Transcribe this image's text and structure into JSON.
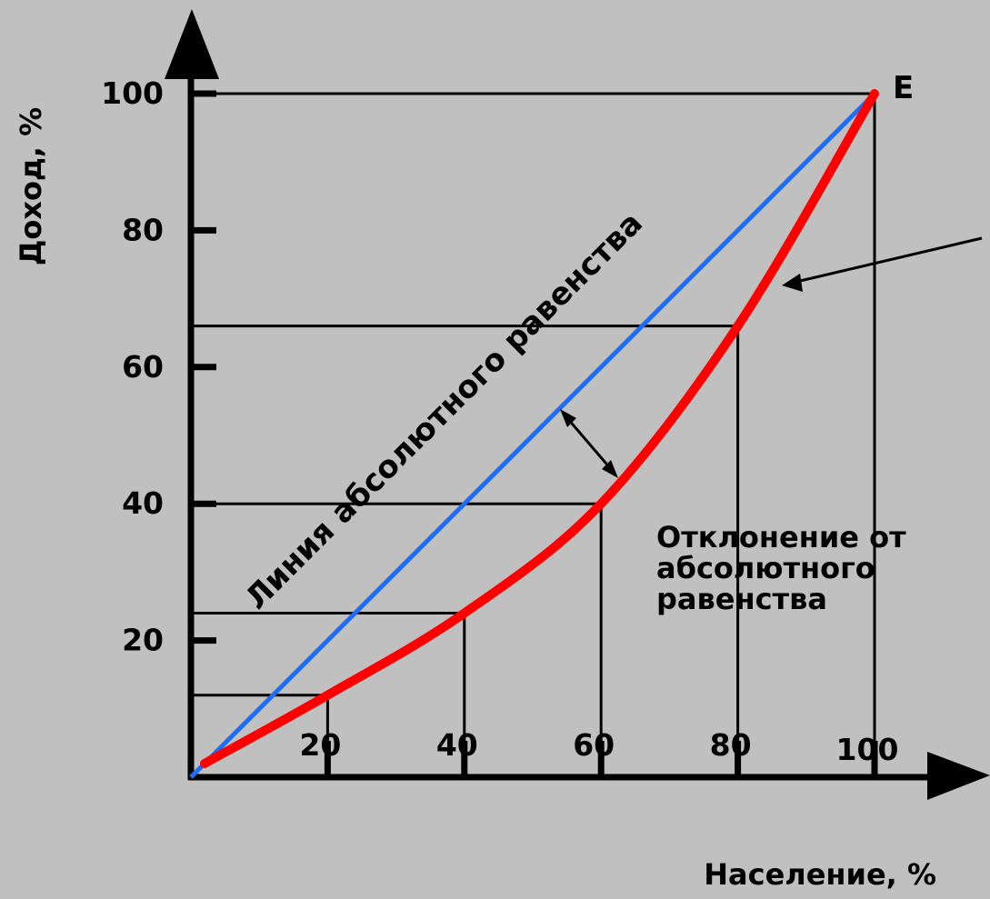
{
  "chart_data": {
    "type": "line",
    "xlabel": "Население, %",
    "ylabel": "Доход, %",
    "xlim": [
      0,
      100
    ],
    "ylim": [
      0,
      100
    ],
    "x_ticks": [
      "20",
      "40",
      "60",
      "80",
      "100"
    ],
    "y_ticks": [
      "20",
      "40",
      "60",
      "80",
      "100"
    ],
    "series": [
      {
        "name": "Линия абсолютного равенства",
        "color": "#1a6dff",
        "x": [
          0,
          100
        ],
        "y": [
          0,
          100
        ]
      },
      {
        "color": "#ff0000",
        "x": [
          2,
          20,
          40,
          60,
          80,
          100
        ],
        "y": [
          2,
          12,
          24,
          40,
          66,
          100
        ]
      }
    ],
    "reference_points": [
      {
        "x": 20,
        "y": 12
      },
      {
        "x": 40,
        "y": 24
      },
      {
        "x": 60,
        "y": 40
      },
      {
        "x": 80,
        "y": 66
      }
    ],
    "point_label": "E",
    "annotation": [
      "Отклонение от",
      "абсолютного",
      "равенства"
    ],
    "grid": false
  }
}
